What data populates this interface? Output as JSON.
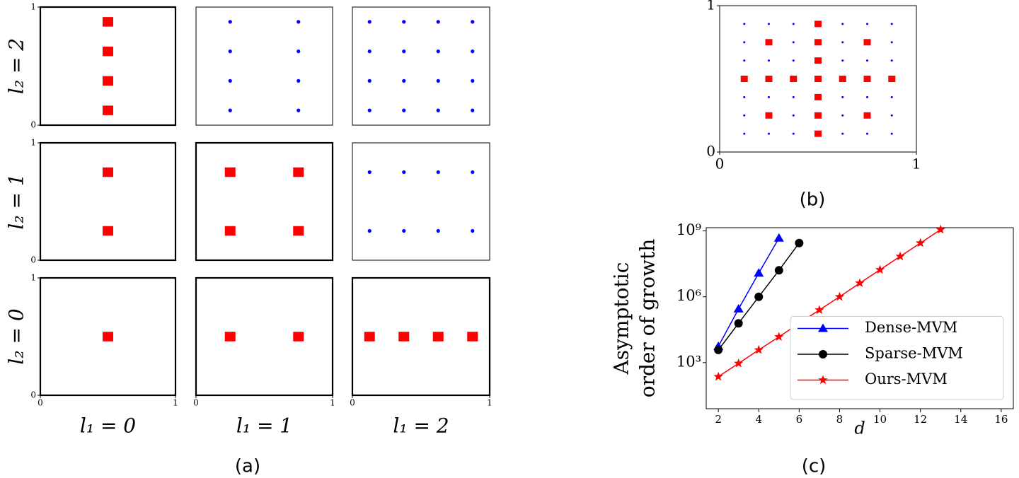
{
  "captions": [
    "(a)",
    "(b)",
    "(c)"
  ],
  "row_labels": [
    "l₂ = 2",
    "l₂ = 1",
    "l₂ = 0"
  ],
  "column_labels": [
    "l₁ = 0",
    "l₁ = 1",
    "l₁ = 2"
  ],
  "chart_data": [
    {
      "type": "scatter",
      "xlim": [
        0,
        1
      ],
      "ylim": [
        0,
        1
      ],
      "yticks": [
        0,
        1
      ],
      "series": [
        {
          "color": "#ff0000",
          "marker": "square",
          "x": [
            0.5,
            0.5,
            0.5,
            0.5
          ],
          "values": [
            0.125,
            0.375,
            0.625,
            0.875
          ]
        }
      ]
    },
    {
      "type": "scatter",
      "xlim": [
        0,
        1
      ],
      "ylim": [
        0,
        1
      ],
      "series": [
        {
          "color": "#0000ff",
          "marker": "dot",
          "x": [
            0.25,
            0.75,
            0.25,
            0.75,
            0.25,
            0.75,
            0.25,
            0.75
          ],
          "values": [
            0.125,
            0.125,
            0.375,
            0.375,
            0.625,
            0.625,
            0.875,
            0.875
          ]
        }
      ]
    },
    {
      "type": "scatter",
      "xlim": [
        0,
        1
      ],
      "ylim": [
        0,
        1
      ],
      "series": [
        {
          "color": "#0000ff",
          "marker": "dot",
          "x": [
            0.125,
            0.375,
            0.625,
            0.875,
            0.125,
            0.375,
            0.625,
            0.875,
            0.125,
            0.375,
            0.625,
            0.875,
            0.125,
            0.375,
            0.625,
            0.875
          ],
          "values": [
            0.125,
            0.125,
            0.125,
            0.125,
            0.375,
            0.375,
            0.375,
            0.375,
            0.625,
            0.625,
            0.625,
            0.625,
            0.875,
            0.875,
            0.875,
            0.875
          ]
        }
      ]
    },
    {
      "type": "scatter",
      "xlim": [
        0,
        1
      ],
      "ylim": [
        0,
        1
      ],
      "yticks": [
        0,
        1
      ],
      "series": [
        {
          "color": "#ff0000",
          "marker": "square",
          "x": [
            0.5,
            0.5
          ],
          "values": [
            0.25,
            0.75
          ]
        }
      ]
    },
    {
      "type": "scatter",
      "xlim": [
        0,
        1
      ],
      "ylim": [
        0,
        1
      ],
      "series": [
        {
          "color": "#ff0000",
          "marker": "square",
          "x": [
            0.25,
            0.75,
            0.25,
            0.75
          ],
          "values": [
            0.25,
            0.25,
            0.75,
            0.75
          ]
        }
      ]
    },
    {
      "type": "scatter",
      "xlim": [
        0,
        1
      ],
      "ylim": [
        0,
        1
      ],
      "series": [
        {
          "color": "#0000ff",
          "marker": "dot",
          "x": [
            0.125,
            0.375,
            0.625,
            0.875,
            0.125,
            0.375,
            0.625,
            0.875
          ],
          "values": [
            0.25,
            0.25,
            0.25,
            0.25,
            0.75,
            0.75,
            0.75,
            0.75
          ]
        }
      ]
    },
    {
      "type": "scatter",
      "xlim": [
        0,
        1
      ],
      "ylim": [
        0,
        1
      ],
      "xticks": [
        0,
        1
      ],
      "yticks": [
        0,
        1
      ],
      "series": [
        {
          "color": "#ff0000",
          "marker": "square",
          "x": [
            0.5
          ],
          "values": [
            0.5
          ]
        }
      ]
    },
    {
      "type": "scatter",
      "xlim": [
        0,
        1
      ],
      "ylim": [
        0,
        1
      ],
      "xticks": [
        0,
        1
      ],
      "series": [
        {
          "color": "#ff0000",
          "marker": "square",
          "x": [
            0.25,
            0.75
          ],
          "values": [
            0.5,
            0.5
          ]
        }
      ]
    },
    {
      "type": "scatter",
      "xlim": [
        0,
        1
      ],
      "ylim": [
        0,
        1
      ],
      "xticks": [
        0,
        1
      ],
      "series": [
        {
          "color": "#ff0000",
          "marker": "square",
          "x": [
            0.125,
            0.375,
            0.625,
            0.875
          ],
          "values": [
            0.5,
            0.5,
            0.5,
            0.5
          ]
        }
      ]
    },
    {
      "type": "scatter",
      "xlim": [
        0,
        1
      ],
      "ylim": [
        0,
        1
      ],
      "xticks": [
        0,
        1
      ],
      "yticks": [
        0,
        1
      ],
      "series": [
        {
          "color": "#0000ff",
          "marker": "dot",
          "x": [
            0.125,
            0.25,
            0.375,
            0.625,
            0.75,
            0.875,
            0.125,
            0.375,
            0.625,
            0.875,
            0.125,
            0.25,
            0.375,
            0.625,
            0.75,
            0.875,
            0.125,
            0.25,
            0.375,
            0.625,
            0.75,
            0.875,
            0.125,
            0.375,
            0.625,
            0.875,
            0.125,
            0.25,
            0.375,
            0.625,
            0.75,
            0.875
          ],
          "values": [
            0.875,
            0.875,
            0.875,
            0.875,
            0.875,
            0.875,
            0.75,
            0.75,
            0.75,
            0.75,
            0.625,
            0.625,
            0.625,
            0.625,
            0.625,
            0.625,
            0.375,
            0.375,
            0.375,
            0.375,
            0.375,
            0.375,
            0.25,
            0.25,
            0.25,
            0.25,
            0.125,
            0.125,
            0.125,
            0.125,
            0.125,
            0.125
          ]
        },
        {
          "color": "#ff0000",
          "marker": "square",
          "x": [
            0.5,
            0.5,
            0.5,
            0.5,
            0.5,
            0.5,
            0.5,
            0.125,
            0.25,
            0.375,
            0.625,
            0.75,
            0.875,
            0.25,
            0.75,
            0.25,
            0.75
          ],
          "values": [
            0.125,
            0.25,
            0.375,
            0.5,
            0.625,
            0.75,
            0.875,
            0.5,
            0.5,
            0.5,
            0.5,
            0.5,
            0.5,
            0.25,
            0.25,
            0.75,
            0.75
          ]
        }
      ]
    },
    {
      "type": "line",
      "xlabel": "d",
      "ylabel": [
        "Asymptotic",
        "order of growth"
      ],
      "xlim": [
        1.4,
        16.6
      ],
      "ylim": [
        8,
        1400000000
      ],
      "log_y": true,
      "legend": "lower right",
      "xticks": [
        2,
        4,
        6,
        8,
        10,
        12,
        14,
        16
      ],
      "yticks": [
        {
          "value": 1000,
          "label": "10³"
        },
        {
          "value": 1000000,
          "label": "10⁶"
        },
        {
          "value": 1000000000,
          "label": "10⁹"
        }
      ],
      "series": [
        {
          "name": "Dense-MVM",
          "color": "#0000ff",
          "marker": "triangle",
          "x": [
            2,
            3,
            4,
            5
          ],
          "values": [
            5500,
            280000,
            12000000,
            470000000
          ]
        },
        {
          "name": "Sparse-MVM",
          "color": "#000000",
          "marker": "circle",
          "x": [
            2,
            3,
            4,
            5,
            6
          ],
          "values": [
            3800,
            62000,
            1000000,
            16000000,
            280000000
          ]
        },
        {
          "name": "Ours-MVM",
          "color": "#ff0000",
          "marker": "star",
          "x": [
            2,
            3,
            4,
            5,
            6,
            7,
            8,
            9,
            10,
            11,
            12,
            13
          ],
          "values": [
            230,
            930,
            3800,
            15000,
            62000,
            250000,
            1000000,
            4200000,
            17000000,
            69000000,
            280000000,
            1150000000
          ]
        }
      ]
    }
  ]
}
